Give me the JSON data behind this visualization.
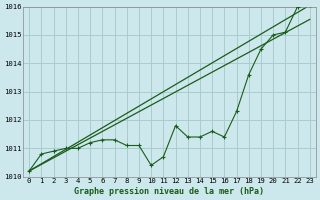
{
  "background_color": "#cce8ec",
  "grid_color": "#aacccc",
  "line_color": "#1a5c1a",
  "title": "Graphe pression niveau de la mer (hPa)",
  "xlim": [
    -0.5,
    23.5
  ],
  "ylim": [
    1010.0,
    1016.0
  ],
  "yticks": [
    1010,
    1011,
    1012,
    1013,
    1014,
    1015,
    1016
  ],
  "xtick_labels": [
    "0",
    "1",
    "2",
    "3",
    "4",
    "5",
    "6",
    "7",
    "8",
    "9",
    "10",
    "11",
    "12",
    "13",
    "14",
    "15",
    "16",
    "17",
    "18",
    "19",
    "20",
    "21",
    "22",
    "23"
  ],
  "series1_x": [
    0,
    1,
    2,
    3,
    4,
    5,
    6,
    7,
    8,
    9,
    10,
    11,
    12,
    13,
    14,
    15,
    16,
    17,
    18,
    19,
    20,
    21,
    22,
    23
  ],
  "series1_y": [
    1010.2,
    1010.8,
    1010.9,
    1011.0,
    1011.0,
    1011.2,
    1011.3,
    1011.3,
    1011.1,
    1011.1,
    1010.4,
    1010.7,
    1011.8,
    1011.4,
    1011.4,
    1011.6,
    1011.4,
    1012.3,
    1013.6,
    1014.5,
    1015.0,
    1015.1,
    1016.0,
    1016.05
  ],
  "series2_x": [
    0,
    23
  ],
  "series2_y": [
    1010.2,
    1015.55
  ],
  "series3_x": [
    0,
    23
  ],
  "series3_y": [
    1010.2,
    1016.05
  ],
  "title_fontsize": 6.0,
  "tick_fontsize": 5.2
}
